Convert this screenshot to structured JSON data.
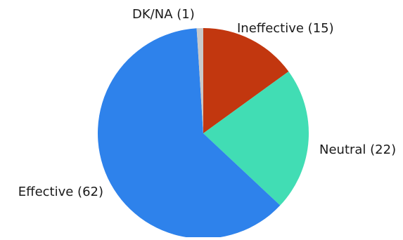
{
  "chart_data": {
    "type": "pie",
    "title": "",
    "start_angle_deg": 0,
    "direction": "clockwise",
    "slices": [
      {
        "label": "Ineffective",
        "value": 15,
        "display": "Ineffective (15)",
        "color": "#c2370f"
      },
      {
        "label": "Neutral",
        "value": 22,
        "display": "Neutral (22)",
        "color": "#41ddb4"
      },
      {
        "label": "Effective",
        "value": 62,
        "display": "Effective (62)",
        "color": "#2e82eb"
      },
      {
        "label": "DK/NA",
        "value": 1,
        "display": "DK/NA (1)",
        "color": "#c9c9c9"
      }
    ],
    "legend": "none"
  }
}
